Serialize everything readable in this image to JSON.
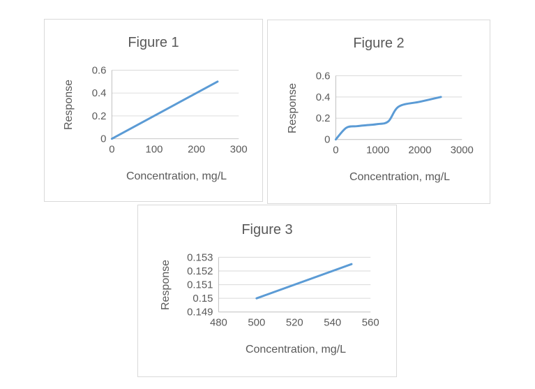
{
  "colors": {
    "line": "#5b9bd5",
    "gridline": "#d9d9d9",
    "axis": "#bfbfbf",
    "text": "#595959",
    "box_border": "#d9d9d9",
    "background": "#ffffff"
  },
  "chart_data": [
    {
      "type": "line",
      "title": "Figure 1",
      "xlabel": "Concentration, mg/L",
      "ylabel": "Response",
      "xlim": [
        0,
        300
      ],
      "ylim": [
        0,
        0.6
      ],
      "x_ticks": [
        0,
        100,
        200,
        300
      ],
      "y_ticks": [
        0,
        0.2,
        0.4,
        0.6
      ],
      "grid": "horizontal",
      "legend": "none",
      "series": [
        {
          "name": "Response",
          "smooth": false,
          "x": [
            0,
            250
          ],
          "y": [
            0,
            0.5
          ]
        }
      ]
    },
    {
      "type": "line",
      "title": "Figure 2",
      "xlabel": "Concentration, mg/L",
      "ylabel": "Response",
      "xlim": [
        0,
        3000
      ],
      "ylim": [
        0,
        0.6
      ],
      "x_ticks": [
        0,
        1000,
        2000,
        3000
      ],
      "y_ticks": [
        0,
        0.2,
        0.4,
        0.6
      ],
      "grid": "horizontal",
      "legend": "none",
      "series": [
        {
          "name": "Response",
          "smooth": true,
          "x": [
            0,
            250,
            500,
            750,
            1000,
            1250,
            1500,
            2000,
            2500
          ],
          "y": [
            0,
            0.11,
            0.125,
            0.135,
            0.145,
            0.17,
            0.31,
            0.355,
            0.4
          ]
        }
      ]
    },
    {
      "type": "line",
      "title": "Figure 3",
      "xlabel": "Concentration, mg/L",
      "ylabel": "Response",
      "xlim": [
        480,
        560
      ],
      "ylim": [
        0.149,
        0.153
      ],
      "x_ticks": [
        480,
        500,
        520,
        540,
        560
      ],
      "y_ticks": [
        0.149,
        0.15,
        0.151,
        0.152,
        0.153
      ],
      "grid": "horizontal",
      "legend": "none",
      "series": [
        {
          "name": "Response",
          "smooth": false,
          "x": [
            500,
            550
          ],
          "y": [
            0.15,
            0.1525
          ]
        }
      ]
    }
  ]
}
